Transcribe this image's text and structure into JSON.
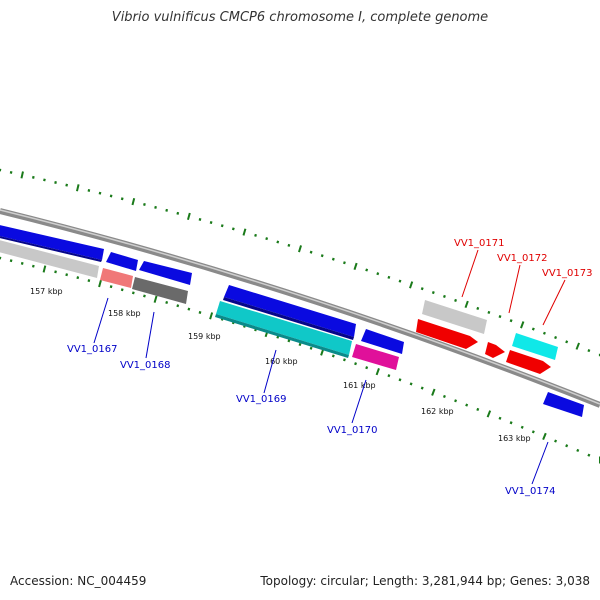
{
  "map": {
    "title": "Vibrio vulnificus CMCP6 chromosome I, complete genome",
    "accession": "Accession: NC_004459",
    "stats": "Topology: circular; Length: 3,281,944 bp; Genes: 3,038",
    "colors": {
      "background": "#ffffff",
      "tick": "#1a7a1a",
      "backbone": "#8a8a8a",
      "label_forward_strand": "#e00000",
      "label_reverse_strand": "#0000c8"
    },
    "tick_labels": [
      "157 kbp",
      "158 kbp",
      "159 kbp",
      "160 kbp",
      "161 kbp",
      "162 kbp",
      "163 kbp"
    ],
    "gene_labels": [
      {
        "id": "VV1_0167",
        "strand": "reverse"
      },
      {
        "id": "VV1_0168",
        "strand": "reverse"
      },
      {
        "id": "VV1_0169",
        "strand": "reverse"
      },
      {
        "id": "VV1_0170",
        "strand": "reverse"
      },
      {
        "id": "VV1_0171",
        "strand": "forward"
      },
      {
        "id": "VV1_0172",
        "strand": "forward"
      },
      {
        "id": "VV1_0173",
        "strand": "forward"
      },
      {
        "id": "VV1_0174",
        "strand": "reverse"
      }
    ],
    "feature_colors": {
      "cds_blue": "#0a0ae0",
      "cds_red": "#f00000",
      "cds_cyan": "#10c8c8",
      "cds_magenta": "#e0109a",
      "cds_lightgray": "#c8c8c8",
      "cds_darkgray": "#6a6a6a",
      "cds_salmon": "#f07878"
    }
  }
}
